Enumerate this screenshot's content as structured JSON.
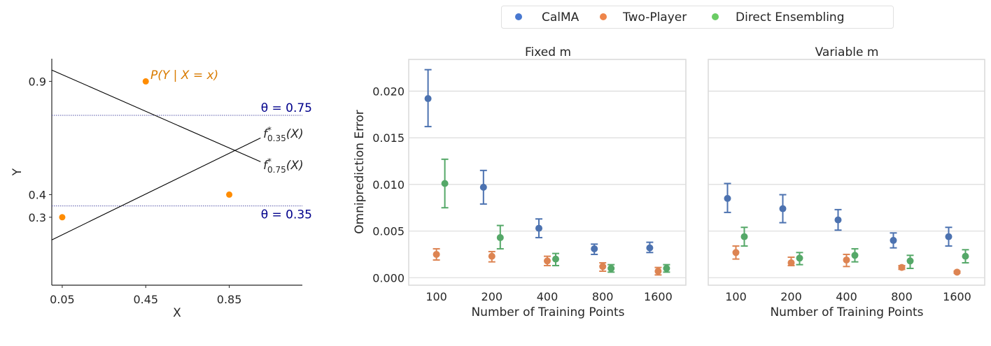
{
  "chart_data": [
    {
      "type": "line",
      "xlabel": "X",
      "ylabel": "Y",
      "xlim": [
        0,
        1.2
      ],
      "ylim": [
        0,
        1.0
      ],
      "xticks": [
        "0.05",
        "0.45",
        "0.85"
      ],
      "xtick_values": [
        0.05,
        0.45,
        0.85
      ],
      "yticks": [
        "0.3",
        "0.4",
        "0.9"
      ],
      "ytick_values": [
        0.3,
        0.4,
        0.9
      ],
      "grid": false,
      "points": {
        "label": "P(Y | X = x)",
        "x": [
          0.05,
          0.45,
          0.85
        ],
        "y": [
          0.3,
          0.9,
          0.4
        ],
        "color": "#ff8c00",
        "label_color": "#d97b00"
      },
      "lines": [
        {
          "label_main": "f",
          "label_sup": "*",
          "label_sub": "0.35",
          "label_tail": "(X)",
          "x": [
            0,
            1.0
          ],
          "y": [
            0.2,
            0.65
          ]
        },
        {
          "label_main": "f",
          "label_sup": "*",
          "label_sub": "0.75",
          "label_tail": "(X)",
          "x": [
            0,
            1.0
          ],
          "y": [
            0.95,
            0.545
          ]
        }
      ],
      "thresholds": [
        {
          "label": "θ = 0.75",
          "y": 0.75
        },
        {
          "label": "θ = 0.35",
          "y": 0.35
        }
      ],
      "threshold_color": "#00008b"
    },
    {
      "type": "scatter",
      "title": "Fixed m",
      "xlabel": "Number of Training Points",
      "ylabel": "Omniprediction Error",
      "categories": [
        "100",
        "200",
        "400",
        "800",
        "1600"
      ],
      "ylim": [
        -0.0008,
        0.0234
      ],
      "yticks": [
        "0.000",
        "0.005",
        "0.010",
        "0.015",
        "0.020"
      ],
      "ytick_values": [
        0,
        0.005,
        0.01,
        0.015,
        0.02
      ],
      "grid": true,
      "series": [
        {
          "name": "CalMA",
          "color": "#4c72b0",
          "values": [
            0.0192,
            0.0097,
            0.0053,
            0.0031,
            0.0032
          ],
          "lower": [
            0.0162,
            0.0079,
            0.0043,
            0.0025,
            0.0027
          ],
          "upper": [
            0.0223,
            0.0115,
            0.0063,
            0.0036,
            0.0038
          ]
        },
        {
          "name": "Two-Player",
          "color": "#dd8452",
          "values": [
            0.0025,
            0.0023,
            0.0018,
            0.0012,
            0.0007
          ],
          "lower": [
            0.0019,
            0.0017,
            0.0013,
            0.0007,
            0.0003
          ],
          "upper": [
            0.0031,
            0.0028,
            0.0023,
            0.0016,
            0.0011
          ]
        },
        {
          "name": "Direct Ensembling",
          "color": "#55a868",
          "values": [
            0.0101,
            0.0043,
            0.002,
            0.001,
            0.001
          ],
          "lower": [
            0.0075,
            0.0031,
            0.0013,
            0.0006,
            0.0006
          ],
          "upper": [
            0.0127,
            0.0056,
            0.0026,
            0.0014,
            0.0014
          ]
        }
      ]
    },
    {
      "type": "scatter",
      "title": "Variable m",
      "xlabel": "Number of Training Points",
      "categories": [
        "100",
        "200",
        "400",
        "800",
        "1600"
      ],
      "ylim": [
        -0.0008,
        0.0234
      ],
      "ytick_values": [
        0,
        0.005,
        0.01,
        0.015,
        0.02
      ],
      "grid": true,
      "series": [
        {
          "name": "CalMA",
          "color": "#4c72b0",
          "values": [
            0.0085,
            0.0074,
            0.0062,
            0.004,
            0.0044
          ],
          "lower": [
            0.007,
            0.0059,
            0.0051,
            0.0032,
            0.0034
          ],
          "upper": [
            0.0101,
            0.0089,
            0.0073,
            0.0048,
            0.0054
          ]
        },
        {
          "name": "Two-Player",
          "color": "#dd8452",
          "values": [
            0.0027,
            0.0016,
            0.0019,
            0.0011,
            0.0006
          ],
          "lower": [
            0.002,
            0.0013,
            0.0012,
            0.0009,
            0.0005
          ],
          "upper": [
            0.0034,
            0.0022,
            0.0025,
            0.0013,
            0.0007
          ]
        },
        {
          "name": "Direct Ensembling",
          "color": "#55a868",
          "values": [
            0.0044,
            0.0021,
            0.0024,
            0.0018,
            0.0023
          ],
          "lower": [
            0.0034,
            0.0014,
            0.0017,
            0.001,
            0.0016
          ],
          "upper": [
            0.0054,
            0.0027,
            0.0031,
            0.0024,
            0.003
          ]
        }
      ]
    }
  ],
  "legend": {
    "placement": "top-center",
    "items": [
      {
        "label": "CalMA",
        "color": "#4878d0"
      },
      {
        "label": "Two-Player",
        "color": "#ee854a"
      },
      {
        "label": "Direct Ensembling",
        "color": "#6acc64"
      }
    ]
  }
}
